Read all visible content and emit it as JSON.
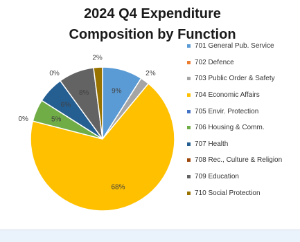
{
  "title_line1": "2024 Q4 Expenditure",
  "title_line2": "Composition by Function",
  "chart_data": {
    "type": "pie",
    "title": "2024 Q4 Expenditure Composition by Function",
    "legend_position": "right",
    "categories": [
      "701 General Pub. Service",
      "702 Defence",
      "703 Public Order & Safety",
      "704 Economic Affairs",
      "705 Envir. Protection",
      "706 Housing & Comm.",
      "707 Health",
      "708 Rec., Culture & Religion",
      "709 Education",
      "710 Social Protection"
    ],
    "values": [
      9,
      0,
      2,
      68,
      0,
      5,
      6,
      0,
      8,
      2
    ],
    "data_labels": [
      "9%",
      "",
      "2%",
      "68%",
      "0%",
      "5%",
      "6%",
      "0%",
      "8%",
      "2%"
    ],
    "colors": [
      "#5b9bd5",
      "#ed7d31",
      "#a5a5a5",
      "#ffc000",
      "#4472c4",
      "#70ad47",
      "#255e91",
      "#9e480e",
      "#636363",
      "#997300"
    ]
  }
}
